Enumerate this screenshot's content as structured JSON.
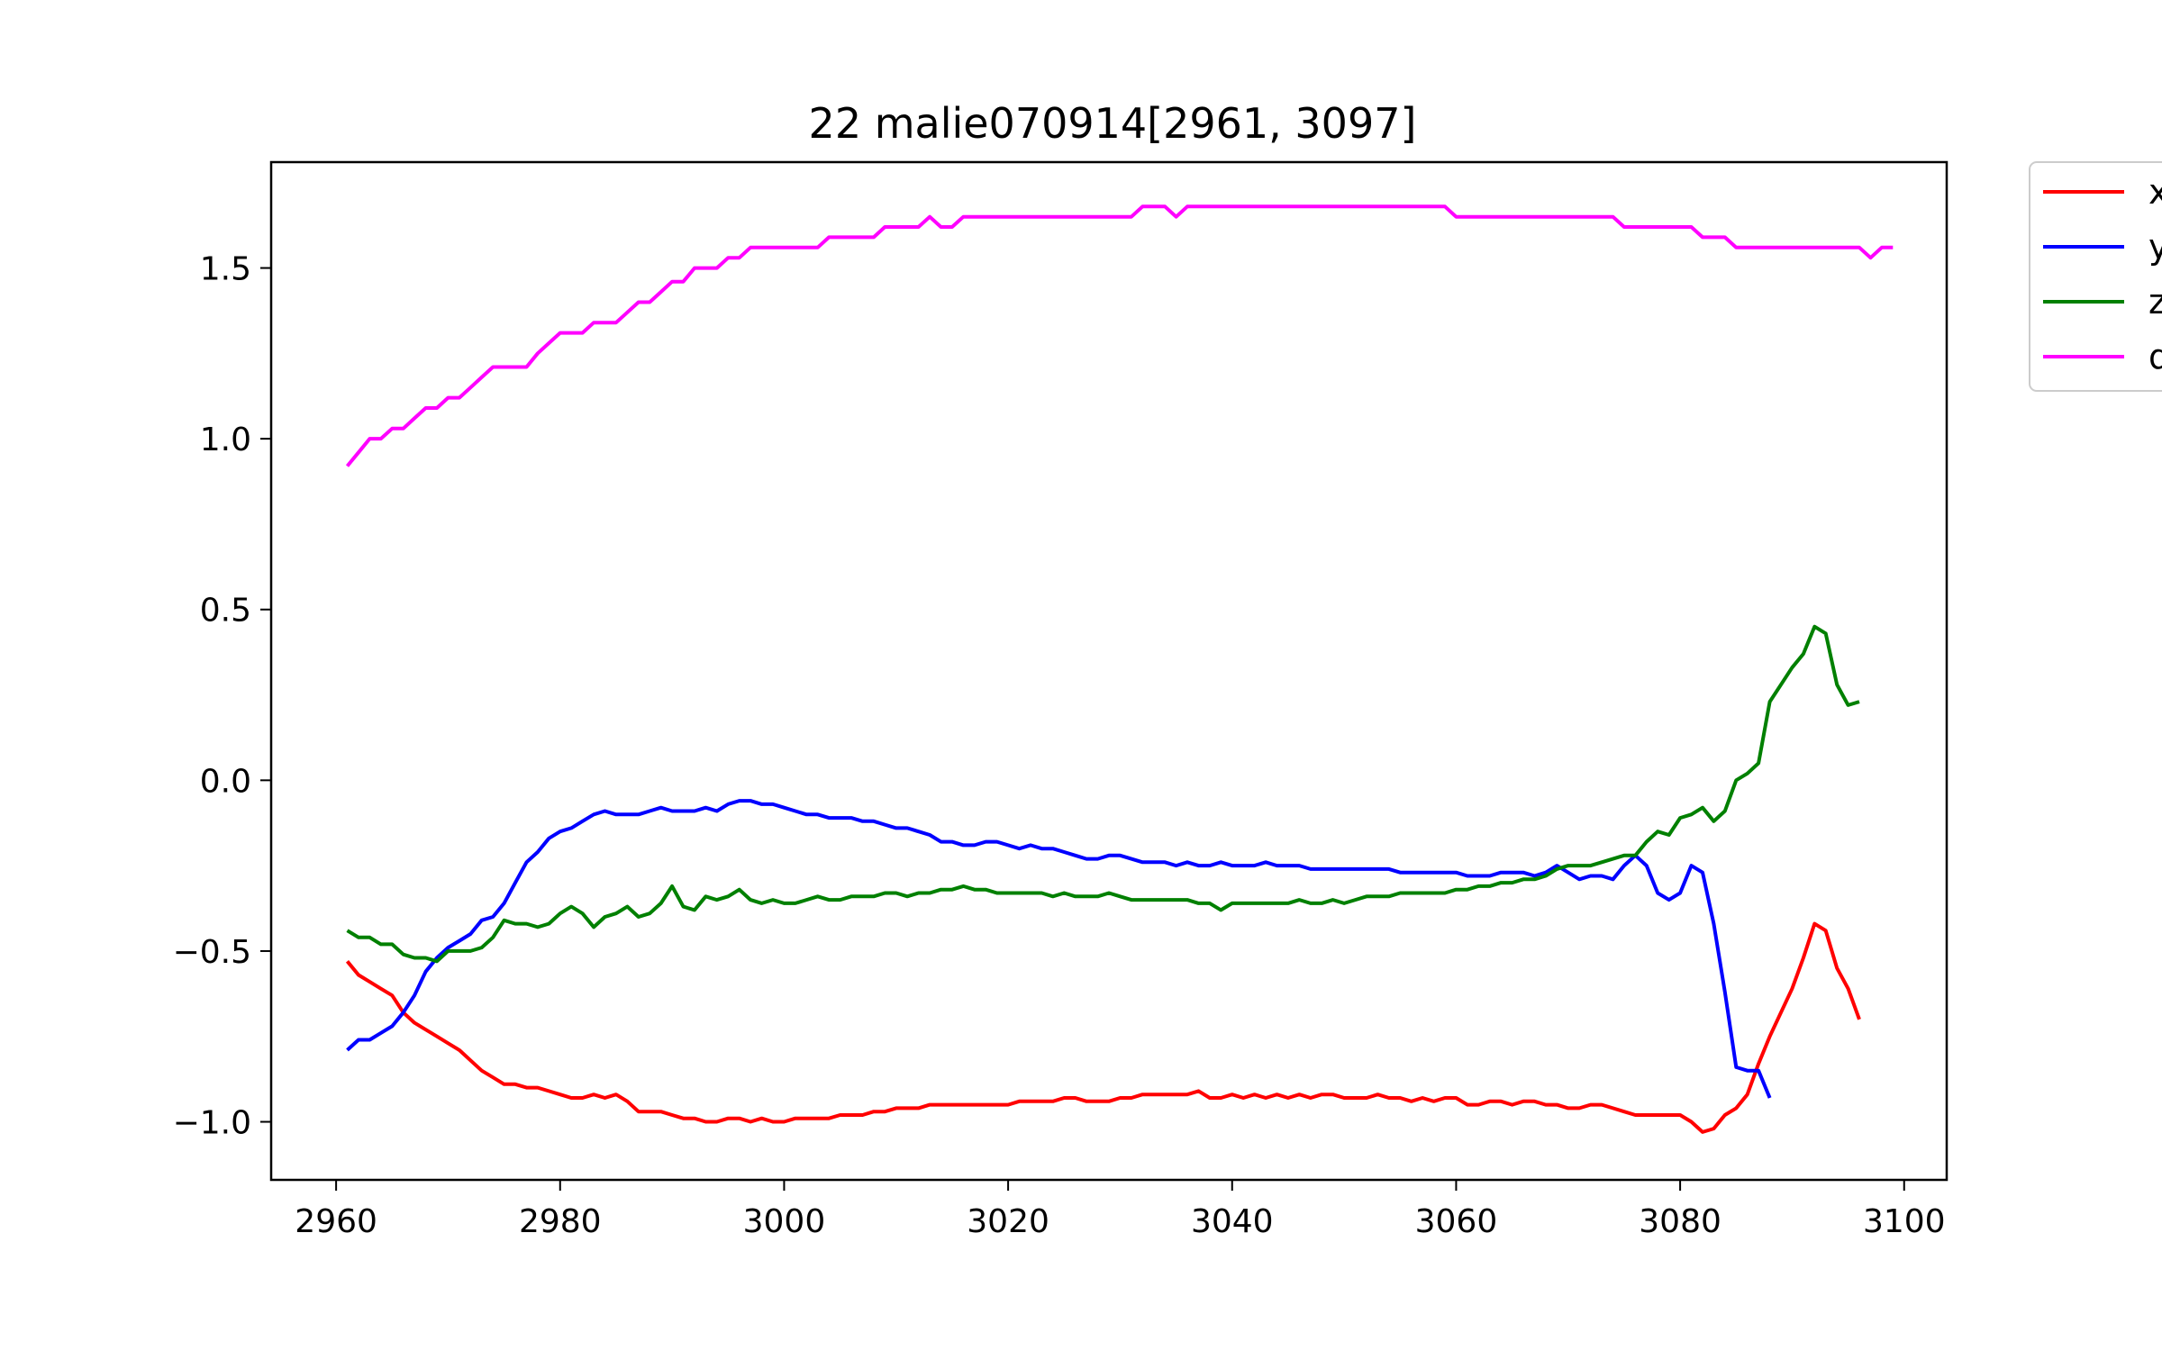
{
  "chart_data": {
    "type": "line",
    "title": "22 malie070914[2961, 3097]",
    "xlabel": "",
    "ylabel": "",
    "xlim": [
      2954.2,
      3103.8
    ],
    "ylim": [
      -1.17,
      1.81
    ],
    "x_start": 2961,
    "x_step": 1,
    "xticks": [
      2960,
      2980,
      3000,
      3020,
      3040,
      3060,
      3080,
      3100
    ],
    "xtick_labels": [
      "2960",
      "2980",
      "3000",
      "3020",
      "3040",
      "3060",
      "3080",
      "3100"
    ],
    "yticks": [
      -1.0,
      -0.5,
      0.0,
      0.5,
      1.0,
      1.5
    ],
    "ytick_labels": [
      "−1.0",
      "−0.5",
      "0.0",
      "0.5",
      "1.0",
      "1.5"
    ],
    "grid": false,
    "legend_placement": "outside-top-right",
    "series": [
      {
        "name": "x",
        "color": "#ff0000",
        "values": [
          -0.53,
          -0.57,
          -0.59,
          -0.61,
          -0.63,
          -0.68,
          -0.71,
          -0.73,
          -0.75,
          -0.77,
          -0.79,
          -0.82,
          -0.85,
          -0.87,
          -0.89,
          -0.89,
          -0.9,
          -0.9,
          -0.91,
          -0.92,
          -0.93,
          -0.93,
          -0.92,
          -0.93,
          -0.92,
          -0.94,
          -0.97,
          -0.97,
          -0.97,
          -0.98,
          -0.99,
          -0.99,
          -1.0,
          -1.0,
          -0.99,
          -0.99,
          -1.0,
          -0.99,
          -1.0,
          -1.0,
          -0.99,
          -0.99,
          -0.99,
          -0.99,
          -0.98,
          -0.98,
          -0.98,
          -0.97,
          -0.97,
          -0.96,
          -0.96,
          -0.96,
          -0.95,
          -0.95,
          -0.95,
          -0.95,
          -0.95,
          -0.95,
          -0.95,
          -0.95,
          -0.94,
          -0.94,
          -0.94,
          -0.94,
          -0.93,
          -0.93,
          -0.94,
          -0.94,
          -0.94,
          -0.93,
          -0.93,
          -0.92,
          -0.92,
          -0.92,
          -0.92,
          -0.92,
          -0.91,
          -0.93,
          -0.93,
          -0.92,
          -0.93,
          -0.92,
          -0.93,
          -0.92,
          -0.93,
          -0.92,
          -0.93,
          -0.92,
          -0.92,
          -0.93,
          -0.93,
          -0.93,
          -0.92,
          -0.93,
          -0.93,
          -0.94,
          -0.93,
          -0.94,
          -0.93,
          -0.93,
          -0.95,
          -0.95,
          -0.94,
          -0.94,
          -0.95,
          -0.94,
          -0.94,
          -0.95,
          -0.95,
          -0.96,
          -0.96,
          -0.95,
          -0.95,
          -0.96,
          -0.97,
          -0.98,
          -0.98,
          -0.98,
          -0.98,
          -0.98,
          -1.0,
          -1.03,
          -1.02,
          -0.98,
          -0.96,
          -0.92,
          -0.83,
          -0.75,
          -0.68,
          -0.61,
          -0.52,
          -0.42,
          -0.44,
          -0.55,
          -0.61,
          -0.7
        ]
      },
      {
        "name": "y",
        "color": "#0000ff",
        "values": [
          -0.79,
          -0.76,
          -0.76,
          -0.74,
          -0.72,
          -0.68,
          -0.63,
          -0.56,
          -0.52,
          -0.49,
          -0.47,
          -0.45,
          -0.41,
          -0.4,
          -0.36,
          -0.3,
          -0.24,
          -0.21,
          -0.17,
          -0.15,
          -0.14,
          -0.12,
          -0.1,
          -0.09,
          -0.1,
          -0.1,
          -0.1,
          -0.09,
          -0.08,
          -0.09,
          -0.09,
          -0.09,
          -0.08,
          -0.09,
          -0.07,
          -0.06,
          -0.06,
          -0.07,
          -0.07,
          -0.08,
          -0.09,
          -0.1,
          -0.1,
          -0.11,
          -0.11,
          -0.11,
          -0.12,
          -0.12,
          -0.13,
          -0.14,
          -0.14,
          -0.15,
          -0.16,
          -0.18,
          -0.18,
          -0.19,
          -0.19,
          -0.18,
          -0.18,
          -0.19,
          -0.2,
          -0.19,
          -0.2,
          -0.2,
          -0.21,
          -0.22,
          -0.23,
          -0.23,
          -0.22,
          -0.22,
          -0.23,
          -0.24,
          -0.24,
          -0.24,
          -0.25,
          -0.24,
          -0.25,
          -0.25,
          -0.24,
          -0.25,
          -0.25,
          -0.25,
          -0.24,
          -0.25,
          -0.25,
          -0.25,
          -0.26,
          -0.26,
          -0.26,
          -0.26,
          -0.26,
          -0.26,
          -0.26,
          -0.26,
          -0.27,
          -0.27,
          -0.27,
          -0.27,
          -0.27,
          -0.27,
          -0.28,
          -0.28,
          -0.28,
          -0.27,
          -0.27,
          -0.27,
          -0.28,
          -0.27,
          -0.25,
          -0.27,
          -0.29,
          -0.28,
          -0.28,
          -0.29,
          -0.25,
          -0.22,
          -0.25,
          -0.33,
          -0.35,
          -0.33,
          -0.25,
          -0.27,
          -0.42,
          -0.62,
          -0.84,
          -0.85,
          -0.85,
          -0.93
        ]
      },
      {
        "name": "z",
        "color": "#008000",
        "values": [
          -0.44,
          -0.46,
          -0.46,
          -0.48,
          -0.48,
          -0.51,
          -0.52,
          -0.52,
          -0.53,
          -0.5,
          -0.5,
          -0.5,
          -0.49,
          -0.46,
          -0.41,
          -0.42,
          -0.42,
          -0.43,
          -0.42,
          -0.39,
          -0.37,
          -0.39,
          -0.43,
          -0.4,
          -0.39,
          -0.37,
          -0.4,
          -0.39,
          -0.36,
          -0.31,
          -0.37,
          -0.38,
          -0.34,
          -0.35,
          -0.34,
          -0.32,
          -0.35,
          -0.36,
          -0.35,
          -0.36,
          -0.36,
          -0.35,
          -0.34,
          -0.35,
          -0.35,
          -0.34,
          -0.34,
          -0.34,
          -0.33,
          -0.33,
          -0.34,
          -0.33,
          -0.33,
          -0.32,
          -0.32,
          -0.31,
          -0.32,
          -0.32,
          -0.33,
          -0.33,
          -0.33,
          -0.33,
          -0.33,
          -0.34,
          -0.33,
          -0.34,
          -0.34,
          -0.34,
          -0.33,
          -0.34,
          -0.35,
          -0.35,
          -0.35,
          -0.35,
          -0.35,
          -0.35,
          -0.36,
          -0.36,
          -0.38,
          -0.36,
          -0.36,
          -0.36,
          -0.36,
          -0.36,
          -0.36,
          -0.35,
          -0.36,
          -0.36,
          -0.35,
          -0.36,
          -0.35,
          -0.34,
          -0.34,
          -0.34,
          -0.33,
          -0.33,
          -0.33,
          -0.33,
          -0.33,
          -0.32,
          -0.32,
          -0.31,
          -0.31,
          -0.3,
          -0.3,
          -0.29,
          -0.29,
          -0.28,
          -0.26,
          -0.25,
          -0.25,
          -0.25,
          -0.24,
          -0.23,
          -0.22,
          -0.22,
          -0.18,
          -0.15,
          -0.16,
          -0.11,
          -0.1,
          -0.08,
          -0.12,
          -0.09,
          0.0,
          0.02,
          0.05,
          0.23,
          0.28,
          0.33,
          0.37,
          0.45,
          0.43,
          0.28,
          0.22,
          0.23
        ]
      },
      {
        "name": "d",
        "color": "#ff00ff",
        "values": [
          0.92,
          0.96,
          1.0,
          1.0,
          1.03,
          1.03,
          1.06,
          1.09,
          1.09,
          1.12,
          1.12,
          1.15,
          1.18,
          1.21,
          1.21,
          1.21,
          1.21,
          1.25,
          1.28,
          1.31,
          1.31,
          1.31,
          1.34,
          1.34,
          1.34,
          1.37,
          1.4,
          1.4,
          1.43,
          1.46,
          1.46,
          1.5,
          1.5,
          1.5,
          1.53,
          1.53,
          1.56,
          1.56,
          1.56,
          1.56,
          1.56,
          1.56,
          1.56,
          1.59,
          1.59,
          1.59,
          1.59,
          1.59,
          1.62,
          1.62,
          1.62,
          1.62,
          1.65,
          1.62,
          1.62,
          1.65,
          1.65,
          1.65,
          1.65,
          1.65,
          1.65,
          1.65,
          1.65,
          1.65,
          1.65,
          1.65,
          1.65,
          1.65,
          1.65,
          1.65,
          1.65,
          1.68,
          1.68,
          1.68,
          1.65,
          1.68,
          1.68,
          1.68,
          1.68,
          1.68,
          1.68,
          1.68,
          1.68,
          1.68,
          1.68,
          1.68,
          1.68,
          1.68,
          1.68,
          1.68,
          1.68,
          1.68,
          1.68,
          1.68,
          1.68,
          1.68,
          1.68,
          1.68,
          1.68,
          1.65,
          1.65,
          1.65,
          1.65,
          1.65,
          1.65,
          1.65,
          1.65,
          1.65,
          1.65,
          1.65,
          1.65,
          1.65,
          1.65,
          1.65,
          1.62,
          1.62,
          1.62,
          1.62,
          1.62,
          1.62,
          1.62,
          1.59,
          1.59,
          1.59,
          1.56,
          1.56,
          1.56,
          1.56,
          1.56,
          1.56,
          1.56,
          1.56,
          1.56,
          1.56,
          1.56,
          1.56,
          1.53,
          1.56,
          1.56
        ]
      }
    ]
  }
}
